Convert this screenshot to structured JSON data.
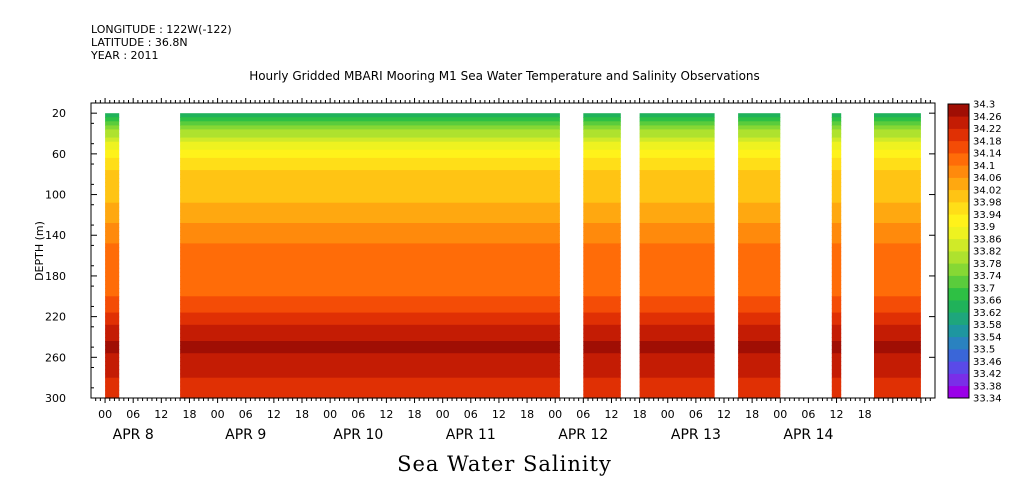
{
  "header": {
    "longitude": "LONGITUDE : 122W(-122)",
    "latitude": "LATITUDE : 36.8N",
    "year": "YEAR : 2011"
  },
  "chart_data": {
    "type": "heatmap",
    "title": "Hourly Gridded MBARI Mooring M1 Sea Water Temperature and Salinity Observations",
    "xlabel": "Sea Water Salinity",
    "ylabel": "DEPTH (m)",
    "hour_ticks": [
      "00",
      "06",
      "12",
      "18",
      "00",
      "06",
      "12",
      "18",
      "00",
      "06",
      "12",
      "18",
      "00",
      "06",
      "12",
      "18",
      "00",
      "06",
      "12",
      "18",
      "00",
      "06",
      "12",
      "18",
      "00",
      "06",
      "12",
      "18"
    ],
    "day_labels": [
      "APR  8",
      "APR  9",
      "APR 10",
      "APR 11",
      "APR 12",
      "APR 13",
      "APR 14"
    ],
    "ylim": [
      300,
      10
    ],
    "y_ticks": [
      20,
      60,
      100,
      140,
      180,
      220,
      260,
      300
    ],
    "colorbar": {
      "levels": [
        33.34,
        33.38,
        33.42,
        33.46,
        33.5,
        33.54,
        33.58,
        33.62,
        33.66,
        33.7,
        33.74,
        33.78,
        33.82,
        33.86,
        33.9,
        33.94,
        33.98,
        34.02,
        34.06,
        34.1,
        34.14,
        34.18,
        34.22,
        34.26,
        34.3
      ],
      "labels": [
        "34.3",
        "34.26",
        "34.22",
        "34.18",
        "34.14",
        "34.1",
        "34.06",
        "34.02",
        "33.98",
        "33.94",
        "33.9",
        "33.86",
        "33.82",
        "33.78",
        "33.74",
        "33.7",
        "33.66",
        "33.62",
        "33.58",
        "33.54",
        "33.5",
        "33.46",
        "33.42",
        "33.38",
        "33.34"
      ],
      "colors": [
        "#9a00e8",
        "#7a2ee8",
        "#5a4ae8",
        "#3a66d8",
        "#2a82c0",
        "#1e96a0",
        "#1ea67c",
        "#20b25a",
        "#2ec044",
        "#5acc3c",
        "#86d834",
        "#aee22e",
        "#d0ea28",
        "#eef220",
        "#fff21a",
        "#ffde18",
        "#ffc414",
        "#ffa810",
        "#ff8a0c",
        "#ff6c08",
        "#f44c06",
        "#e03004",
        "#c41c04",
        "#a00e04"
      ],
      "grid": false
    },
    "value_profile": {
      "depth": [
        20,
        30,
        40,
        50,
        60,
        70,
        80,
        100,
        120,
        140,
        160,
        180,
        200,
        220,
        240,
        250,
        260,
        280,
        300
      ],
      "salinity": [
        33.64,
        33.72,
        33.8,
        33.86,
        33.91,
        33.96,
        33.99,
        34.01,
        34.04,
        34.09,
        34.12,
        34.11,
        34.14,
        34.19,
        34.25,
        34.27,
        34.25,
        34.22,
        34.19
      ]
    },
    "data_segments": [
      {
        "start": "APR 7 18:00",
        "end": "APR 7 20:00"
      },
      {
        "start": "APR 8 10:00",
        "end": "APR 11 18:00"
      },
      {
        "start": "APR 12 00:00",
        "end": "APR 12 07:00"
      },
      {
        "start": "APR 12 12:00",
        "end": "APR 13 03:00"
      },
      {
        "start": "APR 13 09:00",
        "end": "APR 13 17:00"
      },
      {
        "start": "APR 14 05:00",
        "end": "APR 14 06:00"
      },
      {
        "start": "APR 14 14:00",
        "end": "APR 14 23:00"
      }
    ]
  }
}
